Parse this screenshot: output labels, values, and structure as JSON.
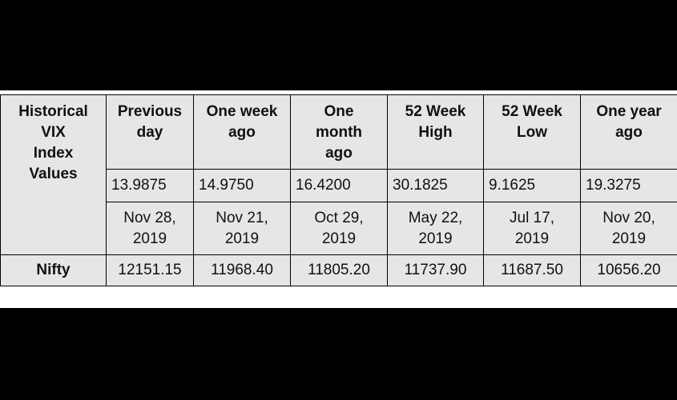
{
  "table": {
    "header": [
      "Historical\nVIX\nIndex\nValues",
      "Previous\nday",
      "One week\nago",
      "One\nmonth\nago",
      "52 Week\nHigh",
      "52 Week\nLow",
      "One year\nago"
    ],
    "vix_values": [
      "13.9875",
      "14.9750",
      "16.4200",
      "30.1825",
      "9.1625",
      "19.3275"
    ],
    "dates": [
      "Nov 28,\n2019",
      "Nov 21,\n2019",
      "Oct 29,\n2019",
      "May 22,\n2019",
      "Jul 17,\n2019",
      "Nov 20,\n2019"
    ],
    "nifty": [
      "Nifty",
      "12151.15",
      "11968.40",
      "11805.20",
      "11737.90",
      "11687.50",
      "10656.20"
    ]
  }
}
